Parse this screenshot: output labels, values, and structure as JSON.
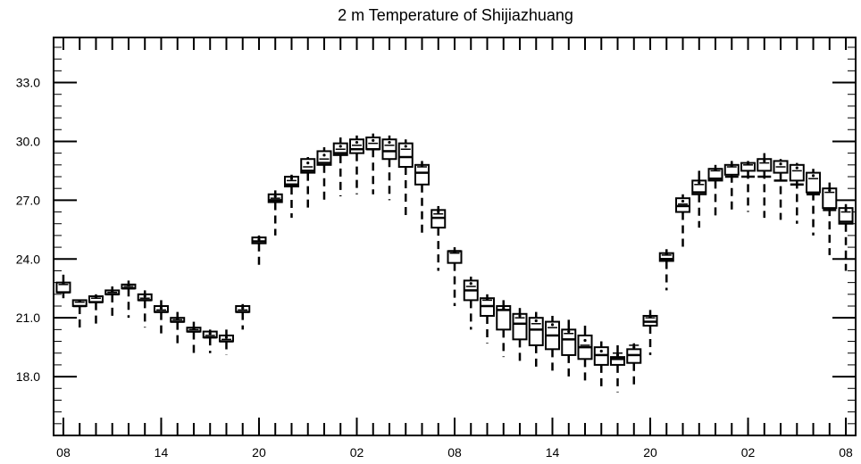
{
  "chart_data": {
    "type": "box",
    "title": "2 m Temperature of Shijiazhuang",
    "xlabel": "",
    "ylabel": "",
    "ylim": [
      15.0,
      35.3
    ],
    "yticks": [
      18.0,
      21.0,
      24.0,
      27.0,
      30.0,
      33.0
    ],
    "ytick_labels": [
      "18.0",
      "21.0",
      "24.0",
      "27.0",
      "30.0",
      "33.0"
    ],
    "x_hours": [
      0,
      6,
      12,
      18,
      24,
      30,
      36,
      42,
      48
    ],
    "x_tick_labels": [
      "08",
      "14",
      "20",
      "02",
      "08",
      "14",
      "20",
      "02",
      "08"
    ],
    "xlim": [
      -0.6,
      48.6
    ],
    "grid": false,
    "series": [
      {
        "hours": [
          0,
          1,
          2,
          3,
          4,
          5,
          6,
          7,
          8,
          9,
          10,
          11,
          12,
          13,
          14,
          15,
          16,
          17,
          18,
          19,
          20,
          21,
          22,
          23,
          24,
          25,
          26,
          27,
          28,
          29,
          30,
          31,
          32,
          33,
          34,
          35,
          36,
          37,
          38,
          39,
          40,
          41,
          42,
          43,
          44,
          45,
          46,
          47,
          48
        ],
        "q1": [
          22.3,
          21.6,
          21.8,
          22.2,
          22.5,
          21.9,
          21.3,
          20.8,
          20.3,
          20.0,
          19.8,
          21.3,
          24.8,
          26.9,
          27.7,
          28.4,
          28.8,
          29.3,
          29.4,
          29.6,
          29.1,
          28.7,
          27.8,
          25.6,
          23.8,
          21.9,
          21.1,
          20.4,
          19.9,
          19.6,
          19.4,
          19.1,
          18.9,
          18.6,
          18.6,
          18.7,
          20.6,
          23.9,
          26.4,
          27.3,
          28.0,
          28.3,
          28.5,
          28.5,
          28.4,
          28.0,
          27.4,
          26.6,
          25.8
        ],
        "median": [
          22.7,
          21.8,
          22.0,
          22.3,
          22.6,
          22.0,
          21.4,
          20.9,
          20.4,
          20.1,
          19.9,
          21.4,
          24.9,
          27.1,
          28.0,
          28.7,
          29.1,
          29.6,
          29.8,
          29.9,
          29.8,
          29.6,
          28.7,
          26.3,
          24.3,
          22.6,
          21.9,
          21.4,
          21.0,
          20.7,
          20.5,
          20.2,
          19.6,
          19.1,
          19.2,
          19.6,
          21.0,
          24.2,
          26.8,
          27.8,
          28.5,
          28.7,
          28.8,
          28.9,
          28.7,
          28.5,
          28.1,
          27.4,
          26.4
        ],
        "q3": [
          22.8,
          21.9,
          22.1,
          22.4,
          22.7,
          22.2,
          21.6,
          21.0,
          20.5,
          20.3,
          20.1,
          21.6,
          25.1,
          27.3,
          28.2,
          29.1,
          29.5,
          29.9,
          30.1,
          30.2,
          30.1,
          29.9,
          28.8,
          26.5,
          24.4,
          22.9,
          22.0,
          21.6,
          21.2,
          21.0,
          20.8,
          20.4,
          20.1,
          19.5,
          19.0,
          19.4,
          21.1,
          24.3,
          27.1,
          28.0,
          28.6,
          28.8,
          28.9,
          29.1,
          29.0,
          28.8,
          28.4,
          27.6,
          26.6
        ],
        "whisker_low": [
          22.0,
          20.4,
          20.5,
          20.9,
          21.0,
          20.5,
          20.0,
          19.6,
          19.2,
          19.2,
          19.1,
          20.4,
          23.5,
          25.2,
          26.1,
          26.5,
          26.9,
          27.2,
          27.3,
          27.3,
          27.0,
          26.2,
          25.2,
          23.4,
          21.6,
          20.4,
          19.7,
          19.0,
          18.6,
          18.5,
          18.2,
          17.8,
          17.6,
          17.4,
          17.2,
          17.4,
          19.1,
          22.4,
          24.5,
          25.6,
          26.0,
          26.3,
          26.4,
          26.1,
          26.0,
          25.8,
          25.2,
          24.2,
          23.4
        ],
        "whisker_high": [
          23.2,
          21.9,
          22.2,
          22.6,
          22.9,
          22.4,
          21.9,
          21.3,
          20.8,
          20.4,
          20.4,
          21.7,
          25.2,
          27.5,
          28.3,
          29.2,
          29.7,
          30.2,
          30.3,
          30.4,
          30.3,
          30.1,
          29.0,
          26.7,
          24.6,
          23.1,
          22.2,
          21.9,
          21.5,
          21.3,
          21.1,
          20.9,
          20.6,
          19.8,
          19.6,
          19.7,
          21.4,
          24.5,
          27.3,
          28.5,
          28.8,
          29.0,
          29.0,
          29.4,
          29.1,
          28.9,
          28.6,
          27.9,
          26.8
        ],
        "upper_bar": [
          22.3,
          21.6,
          21.8,
          22.2,
          22.5,
          21.9,
          21.3,
          20.8,
          20.3,
          20.0,
          19.8,
          21.3,
          24.9,
          27.0,
          27.8,
          28.5,
          28.9,
          29.4,
          29.6,
          29.6,
          29.5,
          29.2,
          28.4,
          26.1,
          24.4,
          22.4,
          21.6,
          21.4,
          20.7,
          20.4,
          20.1,
          19.9,
          19.5,
          19.1,
          18.9,
          19.1,
          20.8,
          24.0,
          26.7,
          27.4,
          28.1,
          28.2,
          28.2,
          28.2,
          28.0,
          27.8,
          27.3,
          26.5,
          25.9
        ]
      }
    ]
  }
}
